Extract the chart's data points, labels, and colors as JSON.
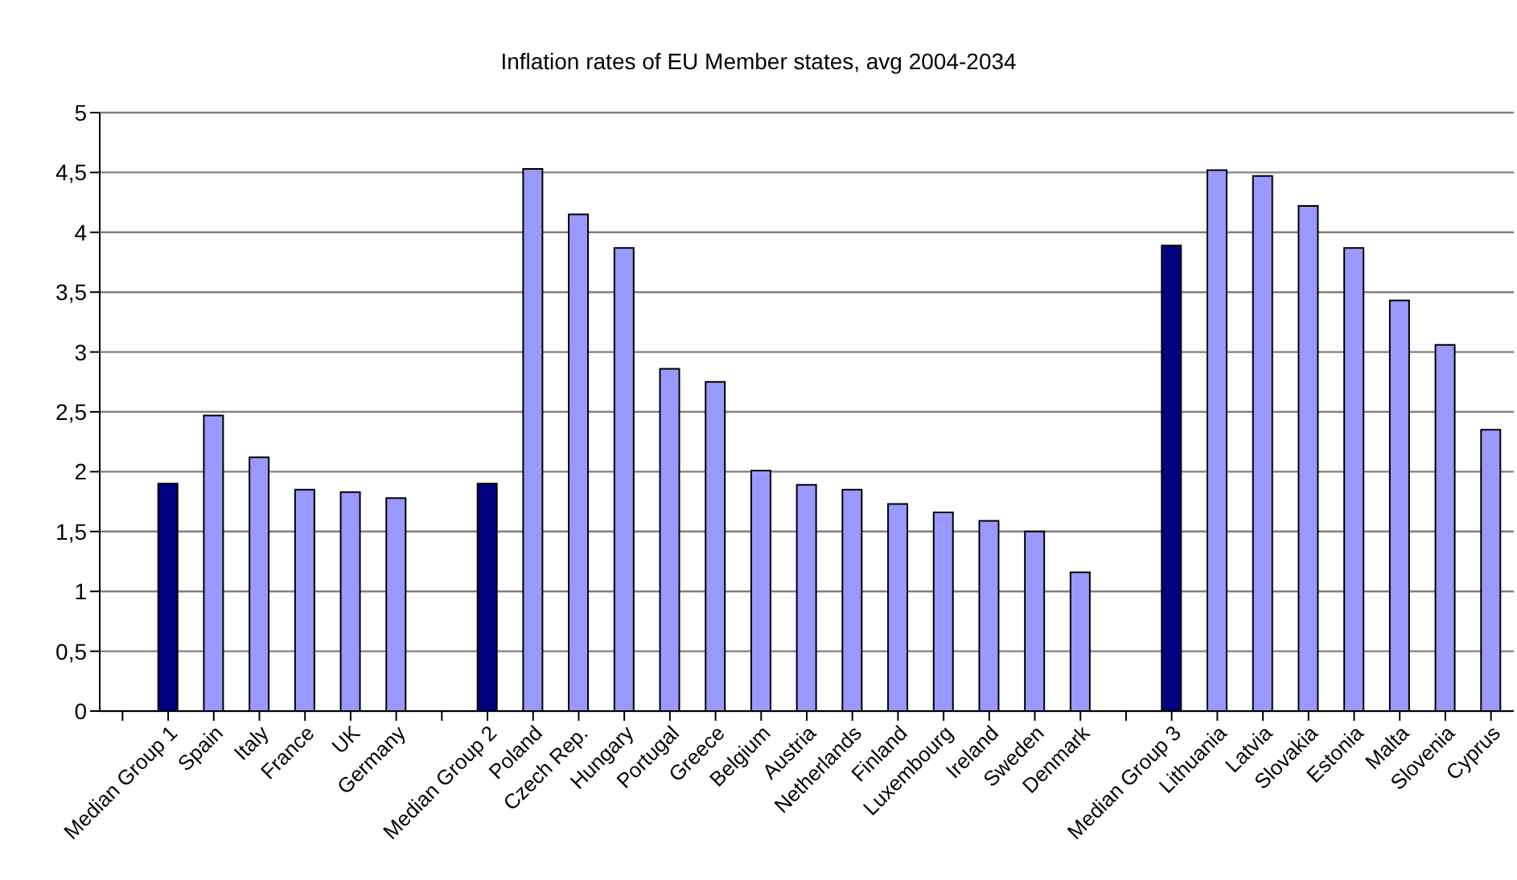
{
  "chart_data": {
    "type": "bar",
    "title": "Inflation rates of EU Member states, avg 2004-2034",
    "categories": [
      null,
      "Median Group 1",
      "Spain",
      "Italy",
      "France",
      "UK",
      "Germany",
      null,
      "Median Group 2",
      "Poland",
      "Czech Rep.",
      "Hungary",
      "Portugal",
      "Greece",
      "Belgium",
      "Austria",
      "Netherlands",
      "Finland",
      "Luxembourg",
      "Ireland",
      "Sweden",
      "Denmark",
      null,
      "Median Group 3",
      "Lithuania",
      "Latvia",
      "Slovakia",
      "Estonia",
      "Malta",
      "Slovenia",
      "Cyprus"
    ],
    "values": [
      null,
      1.9,
      2.47,
      2.12,
      1.85,
      1.83,
      1.78,
      null,
      1.9,
      4.53,
      4.15,
      3.87,
      2.86,
      2.75,
      2.01,
      1.89,
      1.85,
      1.73,
      1.66,
      1.59,
      1.5,
      1.16,
      null,
      3.89,
      4.52,
      4.47,
      4.22,
      3.87,
      3.43,
      3.06,
      2.35
    ],
    "colors": [
      "#9999ff",
      "#000080",
      "#9999ff",
      "#9999ff",
      "#9999ff",
      "#9999ff",
      "#9999ff",
      "#9999ff",
      "#000080",
      "#9999ff",
      "#9999ff",
      "#9999ff",
      "#9999ff",
      "#9999ff",
      "#9999ff",
      "#9999ff",
      "#9999ff",
      "#9999ff",
      "#9999ff",
      "#9999ff",
      "#9999ff",
      "#9999ff",
      "#9999ff",
      "#000080",
      "#9999ff",
      "#9999ff",
      "#9999ff",
      "#9999ff",
      "#9999ff",
      "#9999ff",
      "#9999ff"
    ],
    "ylim": [
      0,
      5
    ],
    "yticks": [
      0,
      {
        "value": 0.5,
        "label": "0,5"
      },
      1,
      {
        "value": 1.5,
        "label": "1,5"
      },
      2,
      {
        "value": 2.5,
        "label": "2,5"
      },
      3,
      {
        "value": 3.5,
        "label": "3,5"
      },
      4,
      {
        "value": 4.5,
        "label": "4,5"
      },
      5
    ],
    "grid": "y",
    "legend": false
  }
}
